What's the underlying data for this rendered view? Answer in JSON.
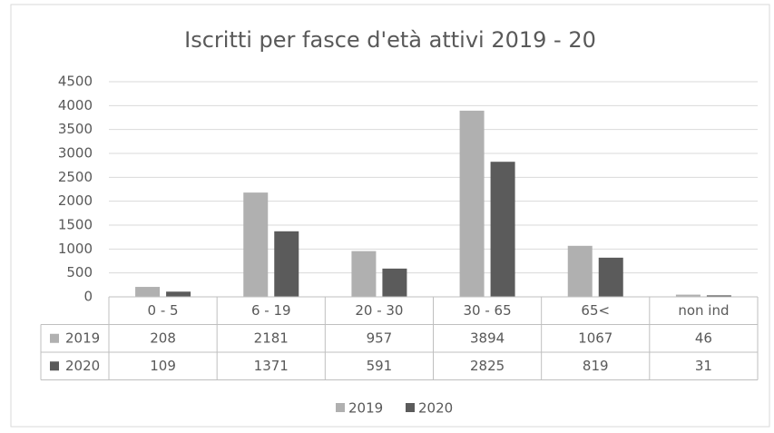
{
  "chart_data": {
    "type": "bar",
    "title": "Iscritti per fasce d'età attivi 2019 - 20",
    "categories": [
      "0 - 5",
      "6 - 19",
      "20 - 30",
      "30 - 65",
      "65<",
      "non ind"
    ],
    "series": [
      {
        "name": "2019",
        "color": "#b0b0b0",
        "values": [
          208,
          2181,
          957,
          3894,
          1067,
          46
        ]
      },
      {
        "name": "2020",
        "color": "#5b5b5b",
        "values": [
          109,
          1371,
          591,
          2825,
          819,
          31
        ]
      }
    ],
    "ylim": [
      0,
      4500
    ],
    "yticks": [
      0,
      500,
      1000,
      1500,
      2000,
      2500,
      3000,
      3500,
      4000,
      4500
    ],
    "grid": true,
    "legend": "bottom"
  }
}
